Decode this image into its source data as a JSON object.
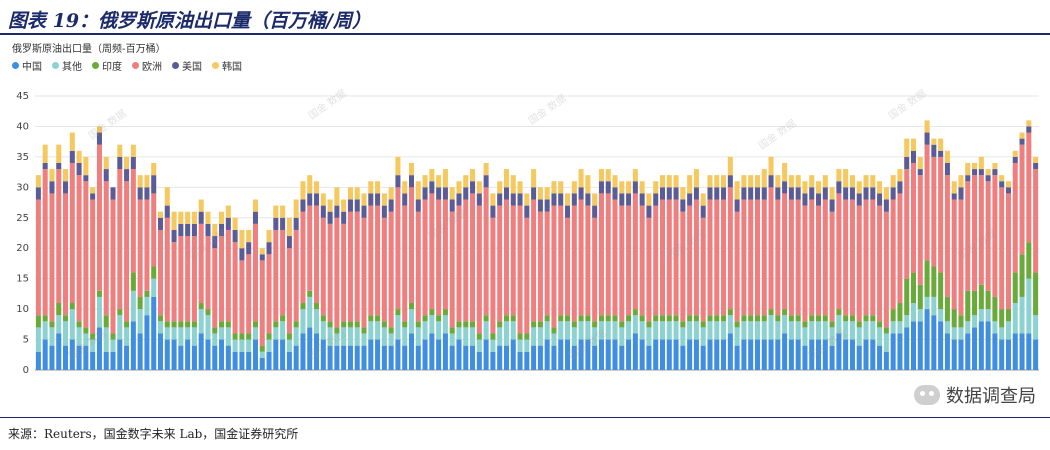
{
  "header": {
    "title": "图表 19：俄罗斯原油出口量（百万桶/周）"
  },
  "footer": {
    "source": "来源：Reuters，国金数字未来 Lab，国金证券研究所"
  },
  "watermark": {
    "text": "数据调查局",
    "bg_text": "国金 数据"
  },
  "chart_data": {
    "type": "bar",
    "stacked": true,
    "ylabel": "俄罗斯原油出口量（周频-百万桶）",
    "ylim": [
      0,
      45
    ],
    "yticks": [
      0,
      5,
      10,
      15,
      20,
      25,
      30,
      35,
      40,
      45
    ],
    "grid": true,
    "legend_position": "top-left",
    "colors": {
      "中国": "#3f8ee0",
      "其他": "#8dd2d2",
      "印度": "#6aaa3a",
      "欧洲": "#ef7f7f",
      "美国": "#5b5b96",
      "韩国": "#f5c860"
    },
    "series": [
      {
        "name": "中国",
        "values": [
          3,
          5,
          4,
          6,
          4,
          5,
          4,
          4,
          3,
          7,
          3,
          3,
          5,
          4,
          8,
          6,
          9,
          12,
          6,
          5,
          5,
          4,
          5,
          4,
          6,
          5,
          4,
          5,
          4,
          3,
          3,
          3,
          5,
          2,
          3,
          5,
          5,
          3,
          4,
          6,
          7,
          6,
          5,
          4,
          4,
          4,
          4,
          4,
          4,
          5,
          5,
          4,
          4,
          5,
          4,
          6,
          4,
          5,
          6,
          5,
          6,
          4,
          5,
          4,
          4,
          3,
          5,
          3,
          4,
          4,
          5,
          3,
          3,
          4,
          4,
          5,
          4,
          5,
          5,
          4,
          5,
          5,
          4,
          5,
          5,
          5,
          4,
          5,
          6,
          5,
          4,
          5,
          5,
          5,
          5,
          4,
          5,
          5,
          4,
          5,
          5,
          5,
          6,
          4,
          5,
          5,
          5,
          5,
          5,
          5,
          6,
          5,
          5,
          4,
          5,
          5,
          5,
          4,
          6,
          5,
          5,
          4,
          5,
          5,
          4,
          3,
          6,
          6,
          7,
          8,
          8,
          10,
          9,
          8,
          6,
          5,
          5,
          6,
          7,
          8,
          8,
          6,
          5,
          5,
          6,
          6,
          6,
          5
        ]
      },
      {
        "name": "其他",
        "values": [
          4,
          3,
          3,
          3,
          4,
          5,
          3,
          2,
          2,
          5,
          4,
          2,
          4,
          3,
          5,
          4,
          3,
          3,
          2,
          2,
          2,
          3,
          2,
          3,
          4,
          4,
          2,
          2,
          3,
          2,
          2,
          2,
          2,
          1,
          2,
          2,
          3,
          2,
          3,
          4,
          5,
          4,
          3,
          3,
          2,
          3,
          3,
          3,
          2,
          3,
          3,
          3,
          2,
          4,
          3,
          4,
          3,
          3,
          3,
          3,
          3,
          2,
          2,
          3,
          3,
          2,
          3,
          2,
          3,
          4,
          3,
          2,
          2,
          3,
          3,
          3,
          2,
          3,
          3,
          3,
          3,
          3,
          3,
          3,
          3,
          3,
          3,
          3,
          3,
          3,
          3,
          3,
          3,
          3,
          3,
          3,
          3,
          3,
          3,
          3,
          3,
          3,
          3,
          3,
          3,
          3,
          3,
          3,
          4,
          3,
          3,
          3,
          3,
          3,
          3,
          3,
          3,
          3,
          3,
          3,
          3,
          3,
          3,
          3,
          3,
          3,
          2,
          2,
          2,
          3,
          2,
          2,
          3,
          2,
          2,
          2,
          2,
          2,
          2,
          2,
          2,
          2,
          2,
          3,
          5,
          6,
          9,
          4
        ]
      },
      {
        "name": "印度",
        "values": [
          2,
          1,
          1,
          2,
          1,
          1,
          1,
          1,
          1,
          1,
          2,
          1,
          1,
          1,
          3,
          2,
          1,
          2,
          1,
          1,
          1,
          1,
          1,
          1,
          1,
          1,
          1,
          1,
          1,
          1,
          1,
          1,
          1,
          1,
          1,
          1,
          1,
          1,
          1,
          1,
          1,
          1,
          1,
          1,
          1,
          1,
          1,
          1,
          1,
          1,
          1,
          1,
          1,
          1,
          1,
          1,
          1,
          1,
          1,
          1,
          1,
          1,
          1,
          1,
          1,
          1,
          1,
          1,
          1,
          1,
          1,
          1,
          1,
          1,
          1,
          1,
          1,
          1,
          1,
          1,
          1,
          1,
          1,
          1,
          1,
          1,
          1,
          1,
          1,
          1,
          1,
          1,
          1,
          1,
          1,
          1,
          1,
          1,
          1,
          1,
          1,
          1,
          1,
          1,
          1,
          1,
          1,
          1,
          1,
          1,
          1,
          1,
          1,
          1,
          1,
          1,
          1,
          1,
          1,
          1,
          1,
          1,
          1,
          1,
          1,
          1,
          2,
          3,
          6,
          5,
          4,
          6,
          5,
          6,
          4,
          3,
          2,
          5,
          4,
          4,
          3,
          4,
          3,
          2,
          5,
          7,
          6,
          7
        ]
      },
      {
        "name": "欧洲",
        "values": [
          19,
          24,
          21,
          22,
          20,
          23,
          24,
          24,
          22,
          24,
          22,
          22,
          23,
          23,
          17,
          16,
          15,
          12,
          14,
          17,
          13,
          14,
          14,
          14,
          13,
          12,
          13,
          14,
          15,
          15,
          12,
          13,
          16,
          14,
          13,
          15,
          14,
          14,
          15,
          15,
          14,
          16,
          16,
          16,
          18,
          16,
          18,
          18,
          18,
          18,
          18,
          17,
          19,
          20,
          19,
          19,
          18,
          19,
          19,
          19,
          18,
          19,
          19,
          20,
          21,
          21,
          21,
          19,
          19,
          19,
          18,
          21,
          19,
          20,
          18,
          17,
          20,
          18,
          16,
          19,
          19,
          18,
          17,
          20,
          20,
          19,
          19,
          18,
          19,
          18,
          17,
          18,
          19,
          19,
          19,
          18,
          18,
          19,
          17,
          19,
          19,
          19,
          20,
          18,
          19,
          19,
          19,
          19,
          20,
          19,
          19,
          19,
          19,
          19,
          19,
          18,
          19,
          18,
          19,
          19,
          19,
          19,
          19,
          19,
          19,
          19,
          18,
          18,
          18,
          18,
          18,
          19,
          18,
          19,
          20,
          18,
          19,
          18,
          19,
          18,
          18,
          20,
          20,
          19,
          18,
          18,
          18,
          17
        ]
      },
      {
        "name": "美国",
        "values": [
          2,
          1,
          2,
          1,
          2,
          2,
          2,
          1,
          1,
          2,
          2,
          2,
          2,
          2,
          2,
          2,
          2,
          3,
          2,
          2,
          2,
          2,
          2,
          2,
          2,
          2,
          2,
          2,
          2,
          2,
          2,
          2,
          2,
          1,
          2,
          2,
          2,
          2,
          2,
          2,
          2,
          2,
          2,
          2,
          2,
          2,
          2,
          2,
          2,
          2,
          2,
          2,
          2,
          2,
          2,
          2,
          2,
          2,
          2,
          2,
          2,
          2,
          2,
          2,
          2,
          2,
          2,
          2,
          2,
          2,
          2,
          2,
          2,
          2,
          2,
          2,
          2,
          2,
          2,
          2,
          2,
          2,
          2,
          2,
          2,
          2,
          2,
          2,
          2,
          2,
          2,
          2,
          2,
          2,
          2,
          2,
          2,
          2,
          2,
          2,
          2,
          2,
          2,
          2,
          2,
          2,
          2,
          2,
          2,
          2,
          2,
          2,
          2,
          2,
          2,
          2,
          2,
          2,
          2,
          2,
          2,
          2,
          2,
          2,
          2,
          2,
          2,
          2,
          2,
          2,
          1,
          2,
          2,
          1,
          2,
          1,
          2,
          1,
          1,
          1,
          1,
          1,
          1,
          1,
          1,
          1,
          1,
          1
        ]
      },
      {
        "name": "韩国",
        "values": [
          2,
          3,
          2,
          3,
          2,
          3,
          2,
          3,
          1,
          1,
          2,
          0,
          2,
          2,
          2,
          2,
          2,
          2,
          1,
          3,
          3,
          2,
          2,
          2,
          2,
          2,
          2,
          2,
          2,
          2,
          3,
          2,
          2,
          1,
          2,
          2,
          2,
          3,
          3,
          3,
          3,
          2,
          2,
          2,
          3,
          2,
          2,
          2,
          2,
          2,
          2,
          2,
          2,
          3,
          2,
          2,
          3,
          2,
          2,
          2,
          3,
          2,
          2,
          2,
          2,
          2,
          2,
          2,
          2,
          3,
          3,
          2,
          2,
          3,
          2,
          2,
          2,
          2,
          2,
          2,
          3,
          3,
          2,
          2,
          2,
          2,
          2,
          2,
          2,
          2,
          2,
          2,
          2,
          2,
          2,
          2,
          3,
          3,
          2,
          2,
          2,
          2,
          3,
          3,
          2,
          2,
          2,
          3,
          3,
          2,
          3,
          2,
          2,
          2,
          2,
          2,
          2,
          2,
          2,
          3,
          2,
          2,
          2,
          2,
          2,
          2,
          2,
          2,
          3,
          2,
          2,
          2,
          1,
          2,
          2,
          2,
          2,
          2,
          1,
          2,
          1,
          1,
          1,
          1,
          1,
          1,
          1,
          1
        ]
      }
    ]
  }
}
